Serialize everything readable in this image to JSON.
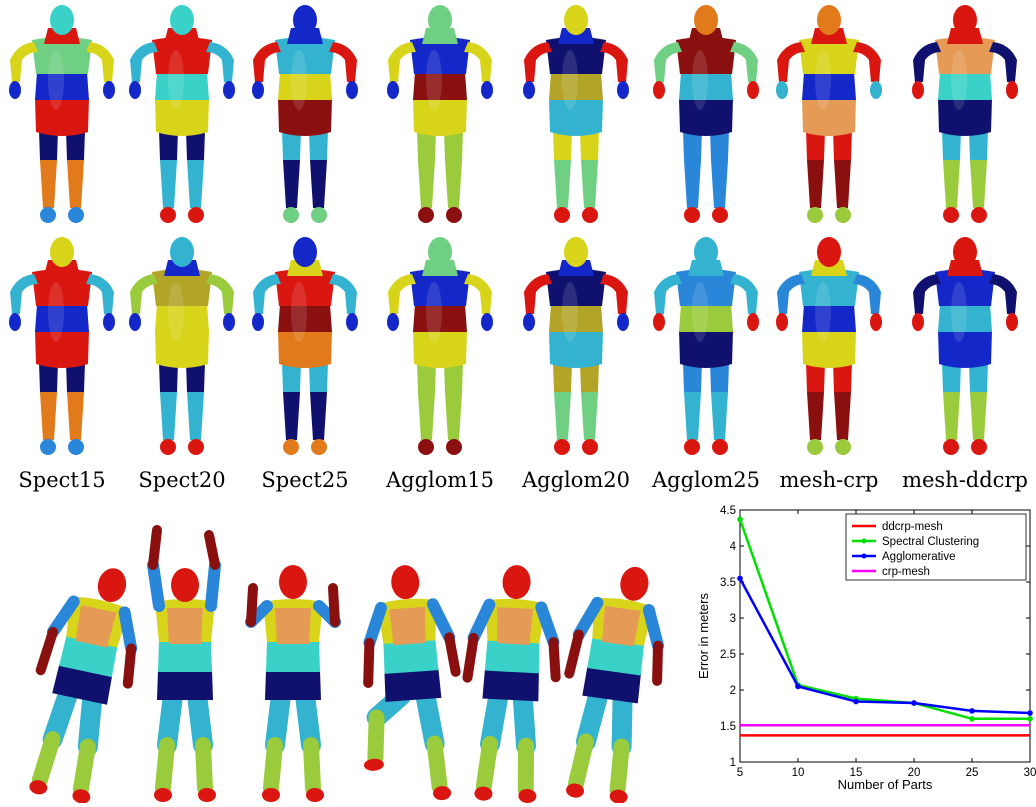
{
  "captions": [
    "Spect15",
    "Spect20",
    "Spect25",
    "Agglom15",
    "Agglom20",
    "Agglom25",
    "mesh-crp",
    "mesh-ddcrp"
  ],
  "colors": {
    "red": "#d9160f",
    "darkred": "#8a1010",
    "orange": "#e07a1a",
    "peach": "#e59a55",
    "yellow": "#d8d41a",
    "lime": "#9acb3c",
    "green": "#6fcf82",
    "cyan": "#3ad2c8",
    "teal": "#33b3cf",
    "sky": "#2a86d9",
    "blue": "#1427c9",
    "navy": "#10106e",
    "olive": "#b3a428"
  },
  "front_row": [
    {
      "head": "cyan",
      "neck": "red",
      "chest": "green",
      "arm": "yellow",
      "hand": "blue",
      "abd": "blue",
      "hip": "red",
      "thigh": "navy",
      "shin": "orange",
      "foot": "sky"
    },
    {
      "head": "cyan",
      "neck": "red",
      "chest": "red",
      "arm": "teal",
      "hand": "blue",
      "abd": "cyan",
      "hip": "yellow",
      "thigh": "navy",
      "shin": "teal",
      "foot": "red"
    },
    {
      "head": "blue",
      "neck": "blue",
      "chest": "teal",
      "arm": "red",
      "hand": "blue",
      "abd": "yellow",
      "hip": "darkred",
      "thigh": "teal",
      "shin": "navy",
      "foot": "green"
    },
    {
      "head": "green",
      "neck": "green",
      "chest": "blue",
      "arm": "yellow",
      "hand": "blue",
      "abd": "darkred",
      "hip": "yellow",
      "thigh": "lime",
      "shin": "lime",
      "foot": "darkred"
    },
    {
      "head": "yellow",
      "neck": "blue",
      "chest": "navy",
      "arm": "red",
      "hand": "blue",
      "abd": "olive",
      "hip": "teal",
      "thigh": "yellow",
      "shin": "green",
      "foot": "red"
    },
    {
      "head": "orange",
      "neck": "darkred",
      "chest": "darkred",
      "arm": "green",
      "hand": "red",
      "abd": "teal",
      "hip": "navy",
      "thigh": "sky",
      "shin": "sky",
      "foot": "red"
    },
    {
      "head": "orange",
      "neck": "red",
      "chest": "yellow",
      "arm": "red",
      "hand": "teal",
      "abd": "blue",
      "hip": "peach",
      "thigh": "red",
      "shin": "darkred",
      "foot": "lime"
    },
    {
      "head": "red",
      "neck": "red",
      "chest": "peach",
      "arm": "navy",
      "hand": "red",
      "abd": "cyan",
      "hip": "navy",
      "thigh": "teal",
      "shin": "lime",
      "foot": "red"
    }
  ],
  "back_row": [
    {
      "head": "yellow",
      "neck": "red",
      "chest": "red",
      "arm": "teal",
      "hand": "blue",
      "abd": "blue",
      "hip": "red",
      "thigh": "navy",
      "shin": "orange",
      "foot": "sky"
    },
    {
      "head": "teal",
      "neck": "blue",
      "chest": "olive",
      "arm": "lime",
      "hand": "blue",
      "abd": "yellow",
      "hip": "yellow",
      "thigh": "navy",
      "shin": "teal",
      "foot": "red"
    },
    {
      "head": "blue",
      "neck": "yellow",
      "chest": "red",
      "arm": "teal",
      "hand": "blue",
      "abd": "darkred",
      "hip": "orange",
      "thigh": "teal",
      "shin": "navy",
      "foot": "orange"
    },
    {
      "head": "green",
      "neck": "green",
      "chest": "blue",
      "arm": "yellow",
      "hand": "blue",
      "abd": "darkred",
      "hip": "yellow",
      "thigh": "lime",
      "shin": "lime",
      "foot": "darkred"
    },
    {
      "head": "yellow",
      "neck": "blue",
      "chest": "navy",
      "arm": "red",
      "hand": "blue",
      "abd": "olive",
      "hip": "teal",
      "thigh": "olive",
      "shin": "green",
      "foot": "red"
    },
    {
      "head": "teal",
      "neck": "teal",
      "chest": "sky",
      "arm": "teal",
      "hand": "red",
      "abd": "lime",
      "hip": "navy",
      "thigh": "sky",
      "shin": "teal",
      "foot": "red"
    },
    {
      "head": "red",
      "neck": "yellow",
      "chest": "teal",
      "arm": "sky",
      "hand": "red",
      "abd": "blue",
      "hip": "yellow",
      "thigh": "red",
      "shin": "darkred",
      "foot": "lime"
    },
    {
      "head": "red",
      "neck": "red",
      "chest": "blue",
      "arm": "navy",
      "hand": "red",
      "abd": "teal",
      "hip": "blue",
      "thigh": "teal",
      "shin": "lime",
      "foot": "red"
    }
  ],
  "pose_row": {
    "head": "red",
    "chest": "peach",
    "collar": "yellow",
    "abd": "cyan",
    "belt": "navy",
    "thigh": "teal",
    "shin": "lime",
    "foot": "red",
    "arm": "sky",
    "forearm": "darkred"
  },
  "chart_data": {
    "type": "line",
    "xlabel": "Number of Parts",
    "ylabel": "Error in meters",
    "xlim": [
      5,
      30
    ],
    "ylim": [
      1,
      4.5
    ],
    "xticks": [
      5,
      10,
      15,
      20,
      25,
      30
    ],
    "yticks": [
      1,
      1.5,
      2,
      2.5,
      3,
      3.5,
      4,
      4.5
    ],
    "legend_position": "top-right",
    "series": [
      {
        "name": "ddcrp-mesh",
        "color": "#ff0000",
        "marker": false,
        "x": [
          5,
          30
        ],
        "y": [
          1.37,
          1.37
        ]
      },
      {
        "name": "Spectral Clustering",
        "color": "#00e000",
        "marker": true,
        "x": [
          5,
          10,
          15,
          20,
          25,
          30
        ],
        "y": [
          4.37,
          2.07,
          1.88,
          1.82,
          1.6,
          1.6
        ]
      },
      {
        "name": "Agglomerative",
        "color": "#0000ff",
        "marker": true,
        "x": [
          5,
          10,
          15,
          20,
          25,
          30
        ],
        "y": [
          3.55,
          2.05,
          1.84,
          1.82,
          1.71,
          1.68
        ]
      },
      {
        "name": "crp-mesh",
        "color": "#ff00ff",
        "marker": false,
        "x": [
          5,
          30
        ],
        "y": [
          1.51,
          1.51
        ]
      }
    ]
  }
}
